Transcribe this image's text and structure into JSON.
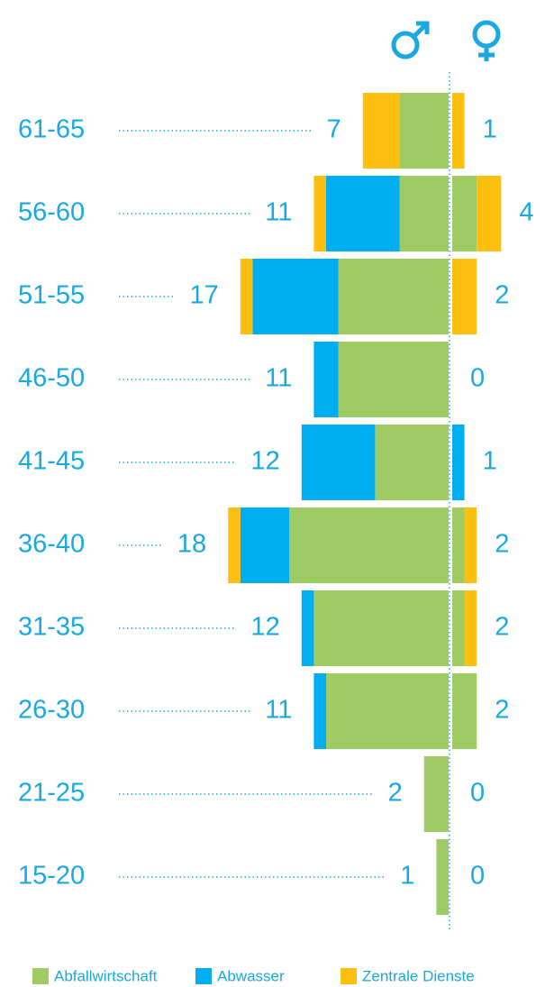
{
  "chart_data": {
    "type": "pyramid",
    "categories": [
      "61-65",
      "56-60",
      "51-55",
      "46-50",
      "41-45",
      "36-40",
      "31-35",
      "26-30",
      "21-25",
      "15-20"
    ],
    "male_totals": [
      7,
      11,
      17,
      11,
      12,
      18,
      12,
      11,
      2,
      1
    ],
    "female_totals": [
      1,
      4,
      2,
      0,
      1,
      2,
      2,
      2,
      0,
      0
    ],
    "series": [
      {
        "name": "Abfallwirtschaft",
        "color": "#9fcb64",
        "male": [
          4,
          4,
          9,
          9,
          6,
          13,
          11,
          10,
          2,
          1
        ],
        "female": [
          0,
          2,
          0,
          0,
          0,
          1,
          1,
          2,
          0,
          0
        ]
      },
      {
        "name": "Abwasser",
        "color": "#00aeef",
        "male": [
          0,
          6,
          7,
          2,
          6,
          4,
          1,
          1,
          0,
          0
        ],
        "female": [
          0,
          0,
          0,
          0,
          1,
          0,
          0,
          0,
          0,
          0
        ]
      },
      {
        "name": "Zentrale Dienste",
        "color": "#fdc010",
        "male": [
          3,
          1,
          1,
          0,
          0,
          1,
          0,
          0,
          0,
          0
        ],
        "female": [
          1,
          2,
          2,
          0,
          0,
          1,
          1,
          0,
          0,
          0
        ]
      }
    ]
  }
}
